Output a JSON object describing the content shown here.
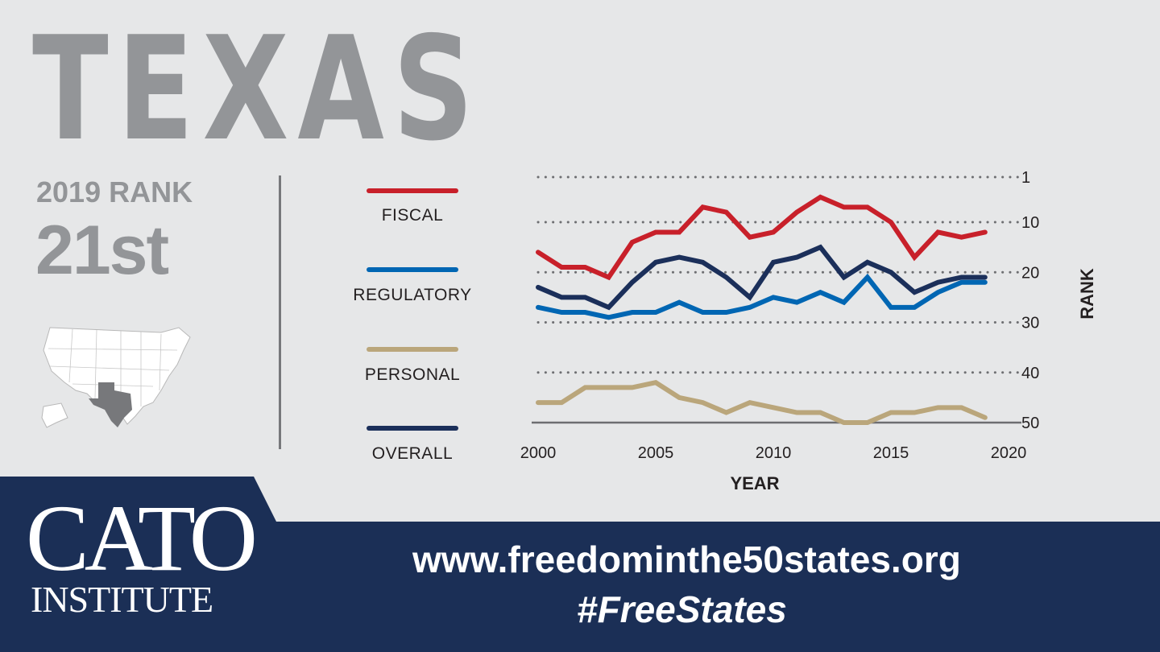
{
  "state": "TEXAS",
  "rank_label": "2019 RANK",
  "rank_value": "21st",
  "footer": {
    "logo_top": "CATO",
    "logo_bottom": "INSTITUTE",
    "url": "www.freedominthe50states.org",
    "hashtag": "#FreeStates"
  },
  "colors": {
    "background": "#e6e7e8",
    "banner": "#1b2f56",
    "title": "#939598"
  },
  "chart_data": {
    "type": "line",
    "xlabel": "YEAR",
    "ylabel": "RANK",
    "xlim": [
      2000,
      2020
    ],
    "ylim": [
      50,
      1
    ],
    "y_inverted": true,
    "x_ticks": [
      "2000",
      "2005",
      "2010",
      "2015",
      "2020"
    ],
    "y_ticks": [
      "1",
      "10",
      "20",
      "30",
      "40",
      "50"
    ],
    "grid": "dotted horizontal",
    "legend_position": "left",
    "x": [
      2000,
      2001,
      2002,
      2003,
      2004,
      2005,
      2006,
      2007,
      2008,
      2009,
      2010,
      2011,
      2012,
      2013,
      2014,
      2015,
      2016,
      2017,
      2018,
      2019
    ],
    "series": [
      {
        "name": "FISCAL",
        "color": "#c8202a",
        "values": [
          16,
          19,
          19,
          21,
          14,
          12,
          12,
          7,
          8,
          13,
          12,
          8,
          5,
          7,
          7,
          10,
          17,
          12,
          13,
          12
        ]
      },
      {
        "name": "REGULATORY",
        "color": "#0066b3",
        "values": [
          27,
          28,
          28,
          29,
          28,
          28,
          26,
          28,
          28,
          27,
          25,
          26,
          24,
          26,
          21,
          27,
          27,
          24,
          22,
          22
        ]
      },
      {
        "name": "PERSONAL",
        "color": "#baa67b",
        "values": [
          46,
          46,
          43,
          43,
          43,
          42,
          45,
          46,
          48,
          46,
          47,
          48,
          48,
          50,
          50,
          48,
          48,
          47,
          47,
          49
        ]
      },
      {
        "name": "OVERALL",
        "color": "#1b2f5a",
        "values": [
          23,
          25,
          25,
          27,
          22,
          18,
          17,
          18,
          21,
          25,
          18,
          17,
          15,
          21,
          18,
          20,
          24,
          22,
          21,
          21
        ]
      }
    ]
  }
}
